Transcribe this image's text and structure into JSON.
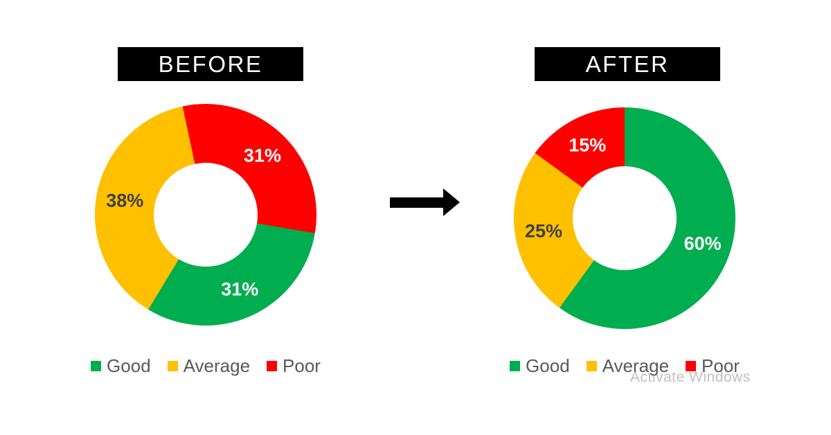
{
  "titles": {
    "before": "BEFORE",
    "after": "AFTER"
  },
  "colors": {
    "good": "#00AE4F",
    "average": "#FFC000",
    "poor": "#FE0000",
    "label_dark": "#404040",
    "label_light": "#FFFFFF",
    "legend_text": "#595959",
    "title_bg": "#000000",
    "title_text": "#FFFFFF",
    "arrow": "#000000",
    "watermark": "#8C8C8C"
  },
  "watermark": {
    "text": "Activate Windows"
  },
  "chart_data": [
    {
      "id": "before",
      "type": "pie",
      "subtype": "donut",
      "title": "BEFORE",
      "units": "percent",
      "start_angle_deg": -12,
      "hole_ratio": 0.47,
      "label_radius_ratio": 0.74,
      "legend_position": "bottom",
      "segments": [
        {
          "label": "Poor",
          "value": 31,
          "color_key": "poor",
          "data_label": "31%",
          "data_label_tone": "light"
        },
        {
          "label": "Good",
          "value": 31,
          "color_key": "good",
          "data_label": "31%",
          "data_label_tone": "light"
        },
        {
          "label": "Average",
          "value": 38,
          "color_key": "average",
          "data_label": "38%",
          "data_label_tone": "dark"
        }
      ],
      "legend": [
        {
          "label": "Good",
          "color_key": "good"
        },
        {
          "label": "Average",
          "color_key": "average"
        },
        {
          "label": "Poor",
          "color_key": "poor"
        }
      ]
    },
    {
      "id": "after",
      "type": "pie",
      "subtype": "donut",
      "title": "AFTER",
      "units": "percent",
      "start_angle_deg": 0,
      "hole_ratio": 0.47,
      "label_radius_ratio": 0.74,
      "legend_position": "bottom",
      "segments": [
        {
          "label": "Good",
          "value": 60,
          "color_key": "good",
          "data_label": "60%",
          "data_label_tone": "light"
        },
        {
          "label": "Average",
          "value": 25,
          "color_key": "average",
          "data_label": "25%",
          "data_label_tone": "dark"
        },
        {
          "label": "Poor",
          "value": 15,
          "color_key": "poor",
          "data_label": "15%",
          "data_label_tone": "light"
        }
      ],
      "legend": [
        {
          "label": "Good",
          "color_key": "good"
        },
        {
          "label": "Average",
          "color_key": "average"
        },
        {
          "label": "Poor",
          "color_key": "poor"
        }
      ]
    }
  ]
}
